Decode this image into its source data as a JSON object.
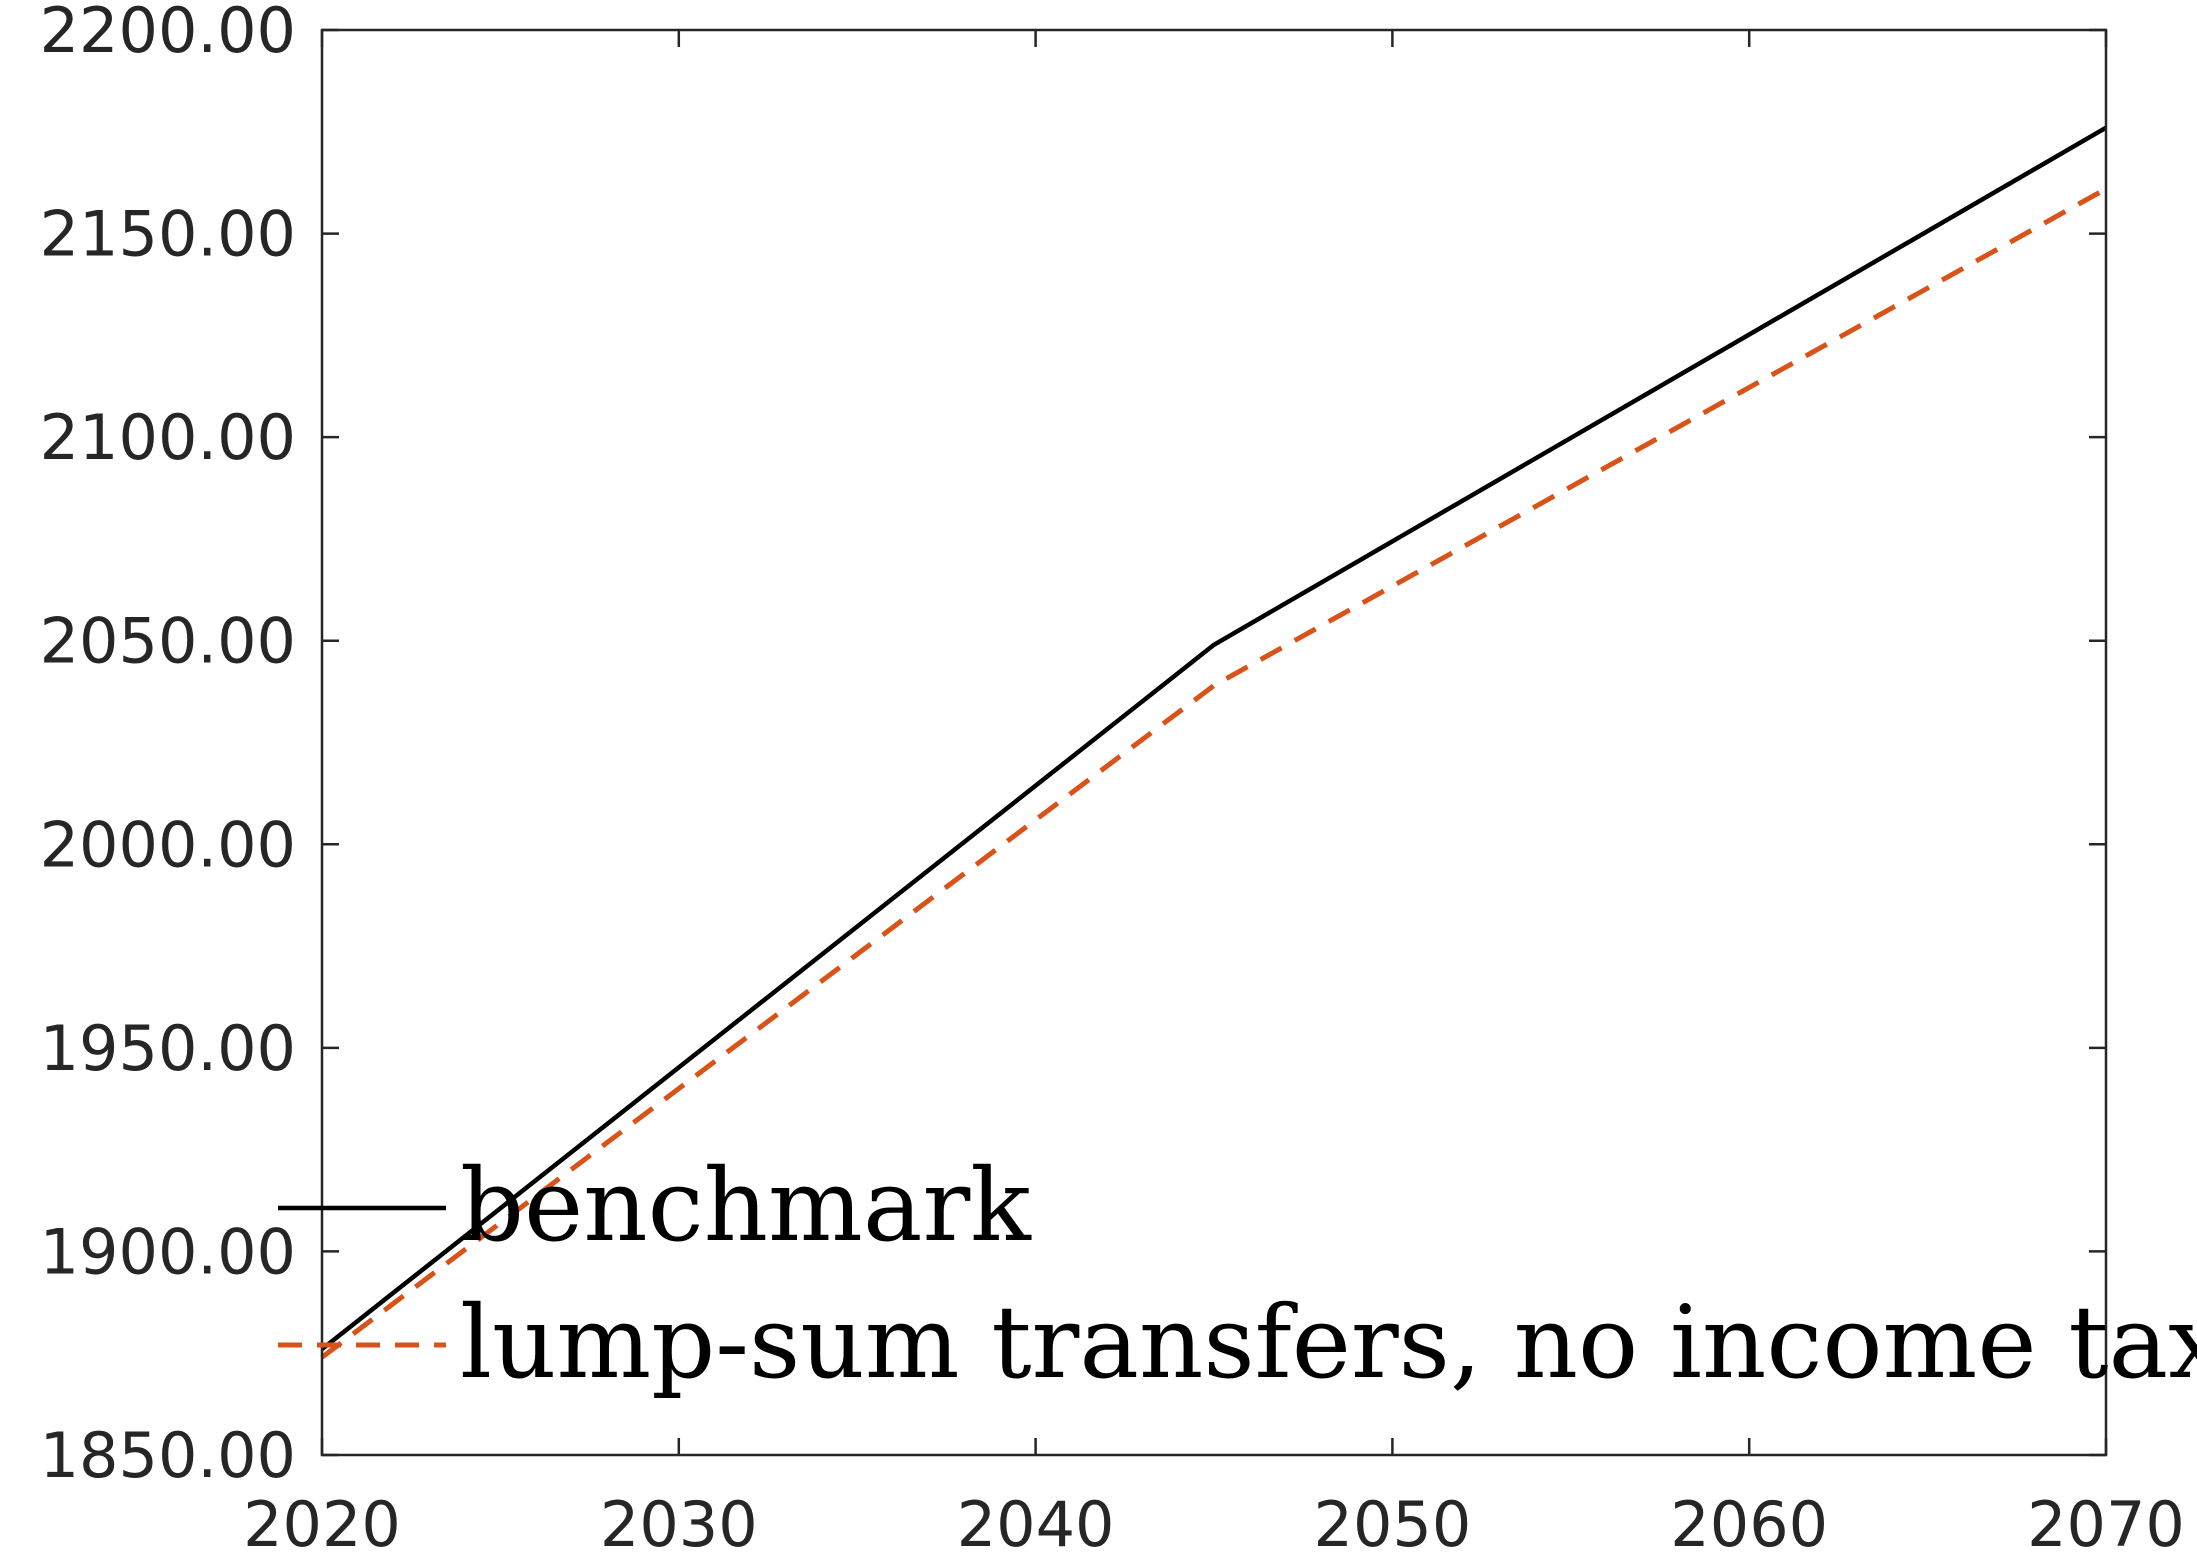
{
  "chart_data": {
    "type": "line",
    "title": "",
    "xlabel": "",
    "ylabel": "",
    "xlim": [
      2020,
      2070
    ],
    "ylim": [
      1850,
      2200
    ],
    "xticks": [
      2020,
      2030,
      2040,
      2050,
      2060,
      2070
    ],
    "yticks": [
      1850,
      1900,
      1950,
      2000,
      2050,
      2100,
      2150,
      2200
    ],
    "xtick_labels": [
      "2020",
      "2030",
      "2040",
      "2050",
      "2060",
      "2070"
    ],
    "ytick_labels": [
      "1850.00",
      "1900.00",
      "1950.00",
      "2000.00",
      "2050.00",
      "2100.00",
      "2150.00",
      "2200.00"
    ],
    "grid": false,
    "legend_position": "bottom-left",
    "series": [
      {
        "name": "benchmark",
        "color": "#000000",
        "style": "solid",
        "x": [
          2020,
          2045,
          2070
        ],
        "y": [
          1876,
          2049,
          2176
        ]
      },
      {
        "name": "lump-sum transfers, no income tax",
        "color": "#D95319",
        "style": "dashed",
        "x": [
          2020,
          2045,
          2070
        ],
        "y": [
          1874,
          2039,
          2161
        ]
      }
    ]
  }
}
